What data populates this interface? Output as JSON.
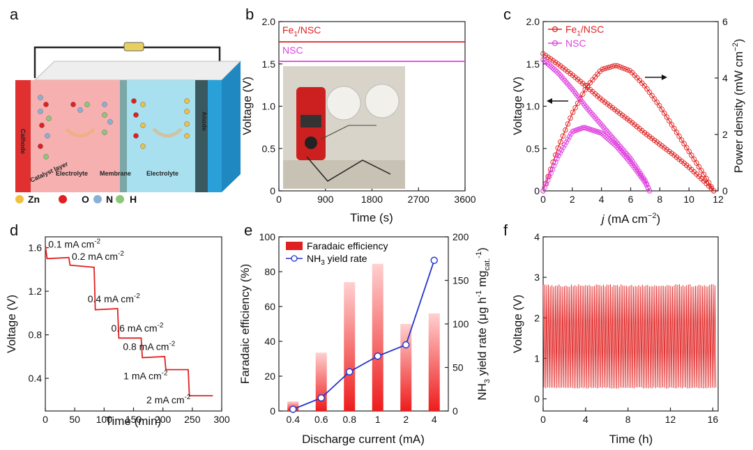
{
  "colors": {
    "red": "#e02020",
    "magenta": "#e040e0",
    "blue": "#2233cc",
    "cathode": "#e03030",
    "anode": "#2aa0d8",
    "electrolyte_left": "#f6b0b0",
    "electrolyte_right": "#a8e0f0",
    "zn": "#f0c040",
    "o": "#e02020",
    "n": "#8ab0d8",
    "h": "#8cc878"
  },
  "panel_letters": [
    "a",
    "b",
    "c",
    "d",
    "e",
    "f"
  ],
  "panel_a": {
    "labels": {
      "cathode": "Cathode",
      "catalyst": "Catalyst layer",
      "electrolyte_left": "Electrolyte",
      "membrane": "Membrane",
      "electrolyte_right": "Electrolyte",
      "anode": "Anode"
    },
    "legend": [
      {
        "label": "Zn",
        "color": "#f0c040"
      },
      {
        "label": "O",
        "color": "#e02020"
      },
      {
        "label": "N",
        "color": "#8ab0d8"
      },
      {
        "label": "H",
        "color": "#8cc878"
      }
    ]
  },
  "chart_data": [
    {
      "panel": "b",
      "type": "line",
      "xlabel": "Time (s)",
      "ylabel": "Voltage (V)",
      "xlim": [
        0,
        3600
      ],
      "ylim": [
        0,
        2.0
      ],
      "xticks": [
        "0",
        "900",
        "1800",
        "2700",
        "3600"
      ],
      "yticks": [
        "0",
        "0.5",
        "1.0",
        "1.5",
        "2.0"
      ],
      "series": [
        {
          "name": "Fe1/NSC",
          "name_main": "Fe",
          "name_sub": "1",
          "name_rest": "/NSC",
          "color": "#e02020",
          "x": [
            0,
            3600
          ],
          "y": [
            1.76,
            1.76
          ]
        },
        {
          "name": "NSC",
          "color": "#e040e0",
          "x": [
            0,
            3600
          ],
          "y": [
            1.53,
            1.53
          ]
        }
      ],
      "inset": "photo of multimeter connected to two assembled cells"
    },
    {
      "panel": "c",
      "type": "line",
      "xlabel_italic": "j",
      "xlabel_rest": " (mA cm",
      "xlabel_sup": "−2",
      "xlabel_end": ")",
      "ylabel": "Voltage (V)",
      "y2label": "Power density (mW cm",
      "y2label_sup": "−2",
      "y2label_end": ")",
      "xlim": [
        0,
        12
      ],
      "ylim": [
        0,
        2.0
      ],
      "y2lim": [
        0,
        6
      ],
      "xticks": [
        "0",
        "2",
        "4",
        "6",
        "8",
        "10",
        "12"
      ],
      "yticks": [
        "0",
        "0.5",
        "1.0",
        "1.5",
        "2.0"
      ],
      "y2ticks": [
        "0",
        "2",
        "4",
        "6"
      ],
      "legend": [
        {
          "main": "Fe",
          "sub": "1",
          "rest": "/NSC",
          "color": "#e02020"
        },
        {
          "main": "NSC",
          "sub": "",
          "rest": "",
          "color": "#e040e0"
        }
      ],
      "series": [
        {
          "name": "Fe1/NSC voltage",
          "axis": "left",
          "color": "#e02020",
          "x": [
            0,
            1,
            2,
            3,
            4,
            5,
            6,
            7,
            8,
            9,
            10,
            11,
            11.7
          ],
          "y": [
            1.62,
            1.5,
            1.37,
            1.23,
            1.08,
            0.95,
            0.82,
            0.68,
            0.55,
            0.42,
            0.28,
            0.12,
            0
          ]
        },
        {
          "name": "Fe1/NSC power",
          "axis": "right",
          "color": "#e02020",
          "x": [
            0,
            1,
            2,
            3,
            4,
            5,
            6,
            7,
            8,
            9,
            10,
            11,
            11.7
          ],
          "y": [
            0,
            1.5,
            2.75,
            3.7,
            4.3,
            4.45,
            4.25,
            3.7,
            3.0,
            2.2,
            1.4,
            0.6,
            0
          ]
        },
        {
          "name": "NSC voltage",
          "axis": "left",
          "color": "#e040e0",
          "x": [
            0,
            1,
            2,
            3,
            4,
            5,
            6,
            7,
            7.3
          ],
          "y": [
            1.55,
            1.4,
            1.2,
            0.98,
            0.78,
            0.58,
            0.38,
            0.12,
            0
          ]
        },
        {
          "name": "NSC power",
          "axis": "right",
          "color": "#e040e0",
          "x": [
            0,
            1,
            2,
            2.8,
            4,
            5,
            6,
            7,
            7.3
          ],
          "y": [
            0,
            1.2,
            2.1,
            2.25,
            2.05,
            1.6,
            1.0,
            0.3,
            0
          ]
        }
      ]
    },
    {
      "panel": "d",
      "type": "line",
      "xlabel": "Time (min)",
      "ylabel": "Voltage (V)",
      "xlim": [
        0,
        300
      ],
      "ylim": [
        0.1,
        1.7
      ],
      "xticks": [
        "0",
        "50",
        "100",
        "150",
        "200",
        "250",
        "300"
      ],
      "yticks": [
        "0.4",
        "0.8",
        "1.2",
        "1.6"
      ],
      "color": "#e02020",
      "series": [
        {
          "name": "discharge",
          "x": [
            0,
            3,
            40,
            42,
            83,
            85,
            123,
            125,
            163,
            165,
            203,
            205,
            243,
            245,
            285
          ],
          "y": [
            1.62,
            1.5,
            1.51,
            1.44,
            1.42,
            1.03,
            1.04,
            0.77,
            0.77,
            0.59,
            0.6,
            0.48,
            0.48,
            0.24,
            0.24
          ]
        }
      ],
      "annotations": [
        {
          "value": "0.1",
          "unit": " mA cm",
          "sup": "-2",
          "x": 5,
          "y": 1.6
        },
        {
          "value": "0.2",
          "unit": " mA cm",
          "sup": "-2",
          "x": 45,
          "y": 1.49
        },
        {
          "value": "0.4",
          "unit": " mA cm",
          "sup": "-2",
          "x": 72,
          "y": 1.1
        },
        {
          "value": "0.6",
          "unit": " mA cm",
          "sup": "-2",
          "x": 112,
          "y": 0.83
        },
        {
          "value": "0.8",
          "unit": " mA cm",
          "sup": "-2",
          "x": 132,
          "y": 0.66
        },
        {
          "value": "1",
          "unit": " mA cm",
          "sup": "-2",
          "x": 133,
          "y": 0.39
        },
        {
          "value": "2",
          "unit": " mA cm",
          "sup": "-2",
          "x": 172,
          "y": 0.17
        }
      ]
    },
    {
      "panel": "e",
      "type": "bar",
      "xlabel": "Discharge current (mA)",
      "ylabel": "Faradaic efficiency (%)",
      "y2label_pre": "NH",
      "y2label_sub3": "3",
      "y2label_mid": " yield rate (μg h",
      "y2label_sup1": "-1",
      "y2label_mg": " mg",
      "y2label_cat": "cat.",
      "y2label_sup2": "-1",
      "y2label_end": ")",
      "categories": [
        "0.4",
        "0.6",
        "0.8",
        "1",
        "2",
        "4"
      ],
      "ylim": [
        0,
        100
      ],
      "y2lim": [
        0,
        200
      ],
      "yticks": [
        "0",
        "20",
        "40",
        "60",
        "80",
        "100"
      ],
      "y2ticks": [
        "0",
        "50",
        "100",
        "150",
        "200"
      ],
      "series": [
        {
          "name": "Faradaic efficiency",
          "kind": "bar",
          "axis": "left",
          "color": "#e02020",
          "values": [
            5.5,
            33.5,
            74,
            84.5,
            50,
            56
          ]
        },
        {
          "name": "NH3 yield rate",
          "kind": "line",
          "axis": "right",
          "color": "#2233cc",
          "values": [
            2,
            15,
            45,
            63,
            76,
            173
          ]
        }
      ],
      "legend": [
        {
          "label": "Faradaic efficiency"
        },
        {
          "pre": "NH",
          "sub": "3",
          "post": " yield rate"
        }
      ]
    },
    {
      "panel": "f",
      "type": "line",
      "xlabel": "Time (h)",
      "ylabel": "Voltage (V)",
      "xlim": [
        0,
        16.5
      ],
      "ylim": [
        -0.3,
        4
      ],
      "xticks": [
        "0",
        "4",
        "8",
        "12",
        "16"
      ],
      "yticks": [
        "0",
        "1",
        "2",
        "3",
        "4"
      ],
      "color": "#e02020",
      "series": [
        {
          "name": "cycling",
          "period_h": 0.167,
          "charge_v": 2.8,
          "discharge_v": 0.27,
          "duration_h": 16.3
        }
      ]
    }
  ]
}
